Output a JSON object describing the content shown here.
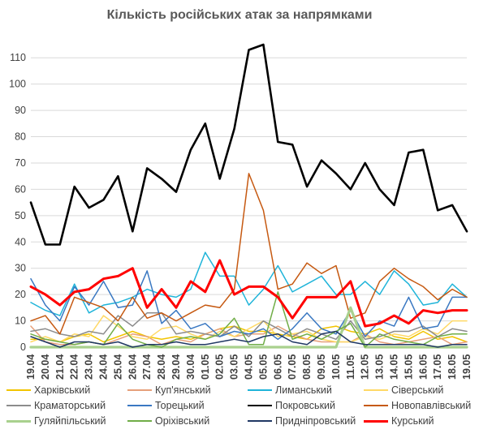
{
  "chart_data": {
    "type": "line",
    "title": "Кількість російських атак за напрямками",
    "xlabel": "",
    "ylabel": "",
    "ylim": [
      0,
      115
    ],
    "yticks": [
      0,
      10,
      20,
      30,
      40,
      50,
      60,
      70,
      80,
      90,
      100,
      110
    ],
    "grid": true,
    "legend_position": "bottom",
    "categories": [
      "19.04",
      "20.04",
      "21.04",
      "22.04",
      "23.04",
      "24.04",
      "25.04",
      "26.04",
      "27.04",
      "28.04",
      "29.04",
      "30.04",
      "01.05",
      "02.05",
      "03.05",
      "04.05",
      "05.05",
      "06.05",
      "07.05",
      "08.05",
      "09.05",
      "10.05",
      "11.05",
      "12.05",
      "13.05",
      "14.05",
      "15.05",
      "16.05",
      "17.05",
      "18.05",
      "19.05"
    ],
    "series": [
      {
        "name": "Харківський",
        "color": "#f2c400",
        "width": 1.5,
        "values": [
          3,
          3,
          2,
          4,
          5,
          2,
          4,
          6,
          4,
          3,
          4,
          3,
          5,
          7,
          8,
          6,
          6,
          5,
          4,
          3,
          7,
          8,
          6,
          5,
          7,
          4,
          3,
          6,
          3,
          4,
          2
        ]
      },
      {
        "name": "Куп'янський",
        "color": "#e6a07a",
        "width": 1.5,
        "values": [
          8,
          2,
          1,
          1,
          2,
          1,
          3,
          5,
          4,
          1,
          3,
          2,
          5,
          7,
          4,
          5,
          5,
          8,
          5,
          3,
          2,
          2,
          2,
          5,
          2,
          1,
          2,
          3,
          4,
          1,
          2
        ]
      },
      {
        "name": "Лиманський",
        "color": "#1fb4d9",
        "width": 1.5,
        "values": [
          17,
          14,
          12,
          24,
          13,
          16,
          17,
          19,
          22,
          20,
          19,
          22,
          36,
          27,
          27,
          16,
          22,
          31,
          21,
          24,
          27,
          20,
          20,
          25,
          20,
          29,
          24,
          16,
          17,
          24,
          19
        ]
      },
      {
        "name": "Сіверський",
        "color": "#ffd966",
        "width": 1.5,
        "values": [
          2,
          4,
          2,
          5,
          4,
          12,
          8,
          4,
          3,
          7,
          8,
          5,
          3,
          6,
          4,
          7,
          10,
          4,
          5,
          6,
          3,
          2,
          2,
          4,
          3,
          5,
          4,
          7,
          5,
          10,
          10
        ]
      },
      {
        "name": "Краматорський",
        "color": "#8c8c8c",
        "width": 1.5,
        "values": [
          6,
          7,
          5,
          4,
          6,
          5,
          12,
          8,
          13,
          13,
          5,
          6,
          5,
          4,
          8,
          4,
          10,
          7,
          4,
          7,
          5,
          3,
          10,
          3,
          4,
          6,
          6,
          8,
          4,
          7,
          6
        ]
      },
      {
        "name": "Торецький",
        "color": "#3a78c2",
        "width": 1.5,
        "values": [
          26,
          16,
          10,
          23,
          16,
          25,
          15,
          16,
          29,
          9,
          14,
          7,
          9,
          4,
          6,
          5,
          7,
          3,
          7,
          13,
          7,
          5,
          14,
          4,
          10,
          8,
          19,
          7,
          8,
          19,
          19
        ]
      },
      {
        "name": "Покровський",
        "color": "#000000",
        "width": 2.6,
        "values": [
          55,
          39,
          39,
          61,
          53,
          56,
          65,
          44,
          68,
          64,
          59,
          75,
          85,
          64,
          83,
          113,
          115,
          78,
          77,
          61,
          71,
          66,
          60,
          70,
          60,
          54,
          74,
          75,
          52,
          54,
          44
        ]
      },
      {
        "name": "Новопавлівський",
        "color": "#c65911",
        "width": 1.5,
        "values": [
          10,
          12,
          5,
          19,
          17,
          15,
          10,
          19,
          11,
          13,
          10,
          13,
          16,
          15,
          22,
          66,
          52,
          22,
          24,
          32,
          28,
          31,
          11,
          13,
          25,
          30,
          26,
          23,
          18,
          22,
          19
        ]
      },
      {
        "name": "Гуляйпільський",
        "color": "#a9d18e",
        "width": 3.2,
        "values": [
          0,
          0,
          0,
          0,
          0,
          0,
          0,
          0,
          0,
          0,
          0,
          0,
          0,
          0,
          0,
          0,
          0,
          0,
          0,
          0,
          0,
          0,
          15,
          0,
          0,
          0,
          0,
          0,
          0,
          0,
          0
        ]
      },
      {
        "name": "Оріхівський",
        "color": "#70ad47",
        "width": 1.5,
        "values": [
          5,
          3,
          2,
          1,
          2,
          1,
          9,
          3,
          1,
          0,
          3,
          4,
          3,
          5,
          11,
          1,
          1,
          21,
          3,
          5,
          3,
          6,
          9,
          0,
          5,
          3,
          2,
          1,
          4,
          5,
          5
        ]
      },
      {
        "name": "Придніпровський",
        "color": "#203864",
        "width": 1.5,
        "values": [
          4,
          2,
          0,
          2,
          2,
          1,
          2,
          0,
          1,
          1,
          2,
          1,
          1,
          2,
          3,
          2,
          4,
          5,
          2,
          1,
          5,
          6,
          2,
          1,
          1,
          1,
          1,
          1,
          0,
          1,
          1
        ]
      },
      {
        "name": "Курський",
        "color": "#ff0000",
        "width": 3.0,
        "values": [
          23,
          20,
          16,
          21,
          22,
          26,
          27,
          30,
          15,
          22,
          15,
          25,
          21,
          33,
          20,
          23,
          23,
          19,
          11,
          19,
          19,
          19,
          25,
          8,
          9,
          12,
          9,
          14,
          13,
          14,
          14
        ]
      }
    ]
  }
}
